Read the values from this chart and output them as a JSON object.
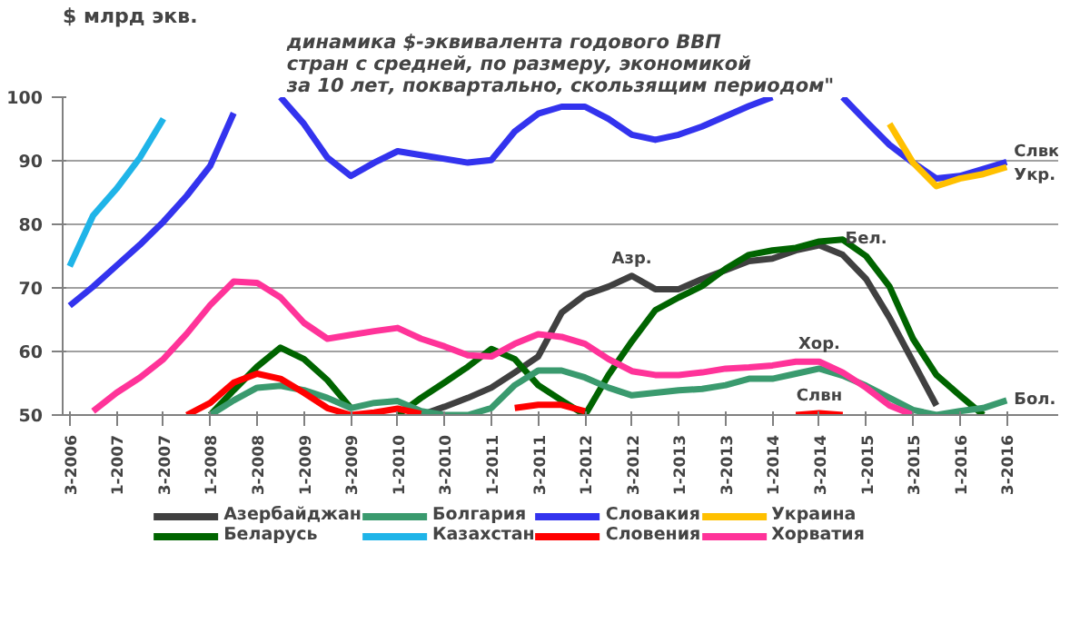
{
  "chart_data": {
    "type": "line",
    "title": "динамика $-эквивалента  годового ВВП\nстран с средней, по размеру, экономикой\nза 10 лет, поквартально, скользящим периодом\"",
    "ylabel": "$ млрд экв.",
    "categories": [
      "3-2006",
      null,
      "1-2007",
      null,
      "3-2007",
      null,
      "1-2008",
      null,
      "3-2008",
      null,
      "1-2009",
      null,
      "3-2009",
      null,
      "1-2010",
      null,
      "3-2010",
      null,
      "1-2011",
      null,
      "3-2011",
      null,
      "1-2012",
      null,
      "3-2012",
      null,
      "1-2013",
      null,
      "3-2013",
      null,
      "1-2014",
      null,
      "3-2014",
      null,
      "1-2015",
      null,
      "3-2015",
      null,
      "1-2016",
      null,
      "3-2016"
    ],
    "ylim": [
      50,
      100
    ],
    "yticks": [
      50,
      60,
      70,
      80,
      90,
      100
    ],
    "grid": "y",
    "legend": "bottom",
    "line_style": "solid",
    "marker": "none",
    "series": [
      {
        "name": "Азербайджан",
        "color": "#404040",
        "values": [
          null,
          null,
          null,
          null,
          null,
          null,
          null,
          null,
          null,
          null,
          null,
          null,
          null,
          null,
          null,
          50,
          51.3,
          52.7,
          54.3,
          56.7,
          59.2,
          66.1,
          68.9,
          70.2,
          71.9,
          69.8,
          69.8,
          71.4,
          72.8,
          74.2,
          74.6,
          75.9,
          76.7,
          75.2,
          71.4,
          65.3,
          58.4,
          51.5,
          null,
          null,
          null
        ]
      },
      {
        "name": "Беларусь",
        "color": "#006400",
        "values": [
          null,
          null,
          null,
          null,
          null,
          null,
          50,
          53.9,
          57.6,
          60.6,
          58.8,
          55.5,
          51.1,
          null,
          50,
          52.7,
          55.1,
          57.6,
          60.4,
          58.8,
          54.7,
          52.3,
          50,
          56.3,
          61.6,
          66.5,
          68.5,
          70.3,
          73,
          75.2,
          75.9,
          76.3,
          77.3,
          77.6,
          75,
          70.2,
          62,
          56.3,
          53.1,
          50,
          null
        ]
      },
      {
        "name": "Болгария",
        "color": "#3a9a6e",
        "values": [
          null,
          null,
          null,
          null,
          null,
          null,
          50,
          52.3,
          54.3,
          54.6,
          53.9,
          52.7,
          51.1,
          51.9,
          52.2,
          50.6,
          50,
          50,
          51.1,
          54.7,
          57,
          57,
          55.9,
          54.3,
          53.1,
          53.5,
          53.9,
          54.1,
          54.7,
          55.7,
          55.7,
          56.5,
          57.3,
          56.2,
          54.6,
          52.7,
          50.8,
          50,
          50.6,
          51.1,
          52.3
        ]
      },
      {
        "name": "Казахстан",
        "color": "#1fb4e8",
        "values": [
          73.4,
          81.4,
          85.6,
          90.5,
          96.6,
          null,
          null,
          null,
          null,
          null,
          null,
          null,
          null,
          null,
          null,
          null,
          null,
          null,
          null,
          null,
          null,
          null,
          null,
          null,
          null,
          null,
          null,
          null,
          null,
          null,
          null,
          null,
          null,
          null,
          null,
          null,
          null,
          null,
          null,
          null,
          null
        ]
      },
      {
        "name": "Словакия",
        "color": "#3333ee",
        "values": [
          67.2,
          70.2,
          73.5,
          76.8,
          80.4,
          84.5,
          89.2,
          97.5,
          null,
          100,
          95.8,
          90.5,
          87.6,
          89.7,
          91.5,
          90.9,
          90.3,
          89.7,
          90.1,
          94.6,
          97.4,
          98.5,
          98.5,
          96.6,
          94.1,
          93.3,
          94.1,
          95.4,
          97,
          98.6,
          100,
          null,
          null,
          100,
          96.2,
          92.5,
          89.7,
          87.2,
          87.6,
          88.7,
          89.8
        ]
      },
      {
        "name": "Словения",
        "color": "#ff0000",
        "values": [
          null,
          null,
          null,
          null,
          null,
          50,
          51.9,
          55.1,
          56.5,
          55.7,
          53.5,
          51.1,
          50,
          50.4,
          51,
          50.2,
          null,
          null,
          null,
          51.1,
          51.6,
          51.6,
          50.6,
          null,
          null,
          null,
          null,
          null,
          null,
          null,
          null,
          50,
          50.3,
          50,
          null,
          null,
          null,
          null,
          null,
          null,
          null
        ]
      },
      {
        "name": "Украина",
        "color": "#ffc000",
        "values": [
          null,
          null,
          null,
          null,
          null,
          null,
          null,
          null,
          null,
          null,
          null,
          null,
          null,
          null,
          null,
          null,
          null,
          null,
          null,
          null,
          null,
          null,
          null,
          null,
          null,
          null,
          null,
          null,
          null,
          null,
          null,
          null,
          null,
          null,
          null,
          95.8,
          89.7,
          86,
          87.2,
          87.9,
          89
        ]
      },
      {
        "name": "Хорватия",
        "color": "#ff3399",
        "values": [
          null,
          50.6,
          53.5,
          55.9,
          58.8,
          62.8,
          67.3,
          71,
          70.8,
          68.5,
          64.5,
          62,
          62.6,
          63.2,
          63.7,
          62,
          60.8,
          59.4,
          59.2,
          61.2,
          62.7,
          62.3,
          61.2,
          58.8,
          56.9,
          56.3,
          56.3,
          56.7,
          57.3,
          57.5,
          57.8,
          58.4,
          58.4,
          56.7,
          54.3,
          51.5,
          50,
          null,
          null,
          null,
          null
        ]
      }
    ],
    "annotations": [
      {
        "text": "Азр.",
        "x": "3-2012",
        "y": 71.9
      },
      {
        "text": "Бел.",
        "x": "1-2015",
        "y": 75
      },
      {
        "text": "Хор.",
        "x": "3-2014",
        "y": 58.4
      },
      {
        "text": "Слвн",
        "x": "3-2014",
        "y": 50.3
      },
      {
        "text": "Слвк",
        "x": "3-2016",
        "y": 89.8
      },
      {
        "text": "Укр.",
        "x": "3-2016",
        "y": 89
      },
      {
        "text": "Бол.",
        "x": "3-2016",
        "y": 52.3
      }
    ]
  }
}
